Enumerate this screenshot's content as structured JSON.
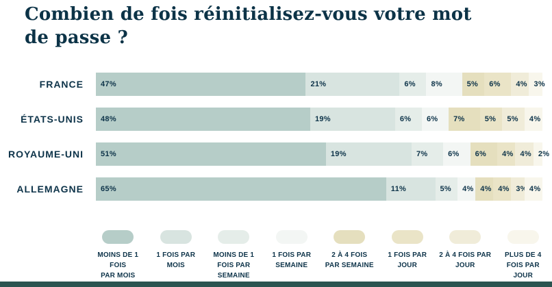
{
  "title": "Combien de fois réinitialisez-vous votre mot\nde passe ?",
  "colors": {
    "text": "#0d3349",
    "background": "#ffffff",
    "bottom_strip": "#2b5450"
  },
  "chart_data": {
    "type": "bar",
    "orientation": "horizontal-stacked",
    "title": "Combien de fois réinitialisez-vous votre mot de passe ?",
    "categories": [
      "FRANCE",
      "ÉTATS-UNIS",
      "ROYAUME-UNI",
      "ALLEMAGNE"
    ],
    "series": [
      {
        "name": "MOINS DE 1 FOIS PAR MOIS",
        "legend_label": "MOINS DE 1 FOIS\nPAR MOIS",
        "color": "#b6cdc8",
        "values": [
          47,
          48,
          51,
          65
        ]
      },
      {
        "name": "1 FOIS PAR MOIS",
        "legend_label": "1 FOIS PAR\nMOIS",
        "color": "#d8e4e0",
        "values": [
          21,
          19,
          19,
          11
        ]
      },
      {
        "name": "MOINS DE 1 FOIS PAR SEMAINE",
        "legend_label": "MOINS DE 1\nFOIS PAR\nSEMAINE",
        "color": "#e5ede9",
        "values": [
          6,
          6,
          7,
          5
        ]
      },
      {
        "name": "1 FOIS PAR SEMAINE",
        "legend_label": "1 FOIS PAR\nSEMAINE",
        "color": "#f3f6f4",
        "values": [
          8,
          6,
          6,
          4
        ]
      },
      {
        "name": "2 À 4 FOIS PAR SEMAINE",
        "legend_label": "2 À 4 FOIS\nPAR SEMAINE",
        "color": "#e5dfbe",
        "values": [
          5,
          7,
          6,
          4
        ]
      },
      {
        "name": "1 FOIS PAR JOUR",
        "legend_label": "1 FOIS PAR\nJOUR",
        "color": "#eae4c7",
        "values": [
          6,
          5,
          4,
          4
        ]
      },
      {
        "name": "2 À 4 FOIS PAR JOUR",
        "legend_label": "2 À 4 FOIS PAR\nJOUR",
        "color": "#f0ecd9",
        "values": [
          4,
          5,
          4,
          3
        ]
      },
      {
        "name": "PLUS DE 4 FOIS PAR JOUR",
        "legend_label": "PLUS DE 4\nFOIS PAR\nJOUR",
        "color": "#f8f6ec",
        "values": [
          3,
          4,
          2,
          4
        ]
      }
    ],
    "value_suffix": "%",
    "xlim": [
      0,
      100
    ],
    "grid": false,
    "legend_position": "bottom"
  }
}
